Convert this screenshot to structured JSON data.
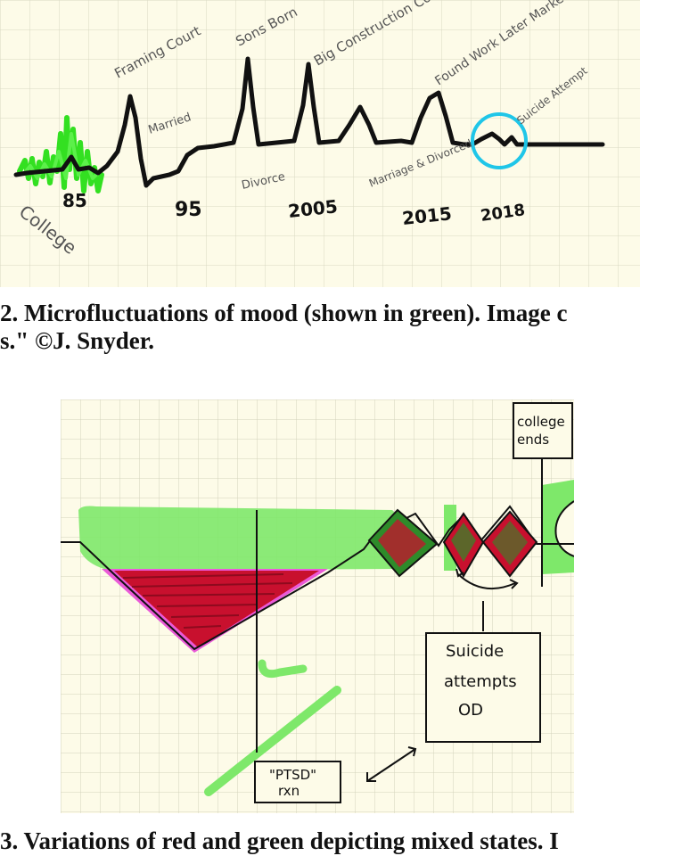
{
  "figure2": {
    "caption_line1": "2.  Microfluctuations of mood (shown in green).  Image c",
    "caption_line2": "s.\" ©J. Snyder.",
    "annotations": {
      "framing_court": "Framing Court",
      "married": "Married",
      "sons_born": "Sons Born",
      "divorce": "Divorce",
      "big_construction_company": "Big Construction Company",
      "marriage_divorced": "Marriage & Divorced",
      "found_work_market_crash": "Found Work Later Market Crash",
      "suicide_attempt": "Suicide Attempt",
      "college": "College"
    },
    "year_labels": [
      "85",
      "95",
      "2005",
      "2015",
      "2018"
    ],
    "colors": {
      "paper": "#fdfbe8",
      "grid": "#d9d8c2",
      "mood_line": "#111111",
      "green": "#33e021",
      "circle": "#1fc6e8"
    }
  },
  "figure3": {
    "caption": "3.  Variations of red and green depicting mixed states.  I",
    "labels": {
      "college_ends_1": "college",
      "college_ends_2": "ends",
      "suicide_1": "Suicide",
      "suicide_2": "attempts",
      "suicide_3": "OD",
      "ptsd_1": "\"PTSD\"",
      "ptsd_2": "rxn"
    },
    "colors": {
      "paper": "#fdfbe8",
      "grid": "#d4d3bb",
      "green": "#7ee86a",
      "red": "#c8102e",
      "pink": "#ea5ad8",
      "dark_green": "#2e8b2a"
    }
  }
}
